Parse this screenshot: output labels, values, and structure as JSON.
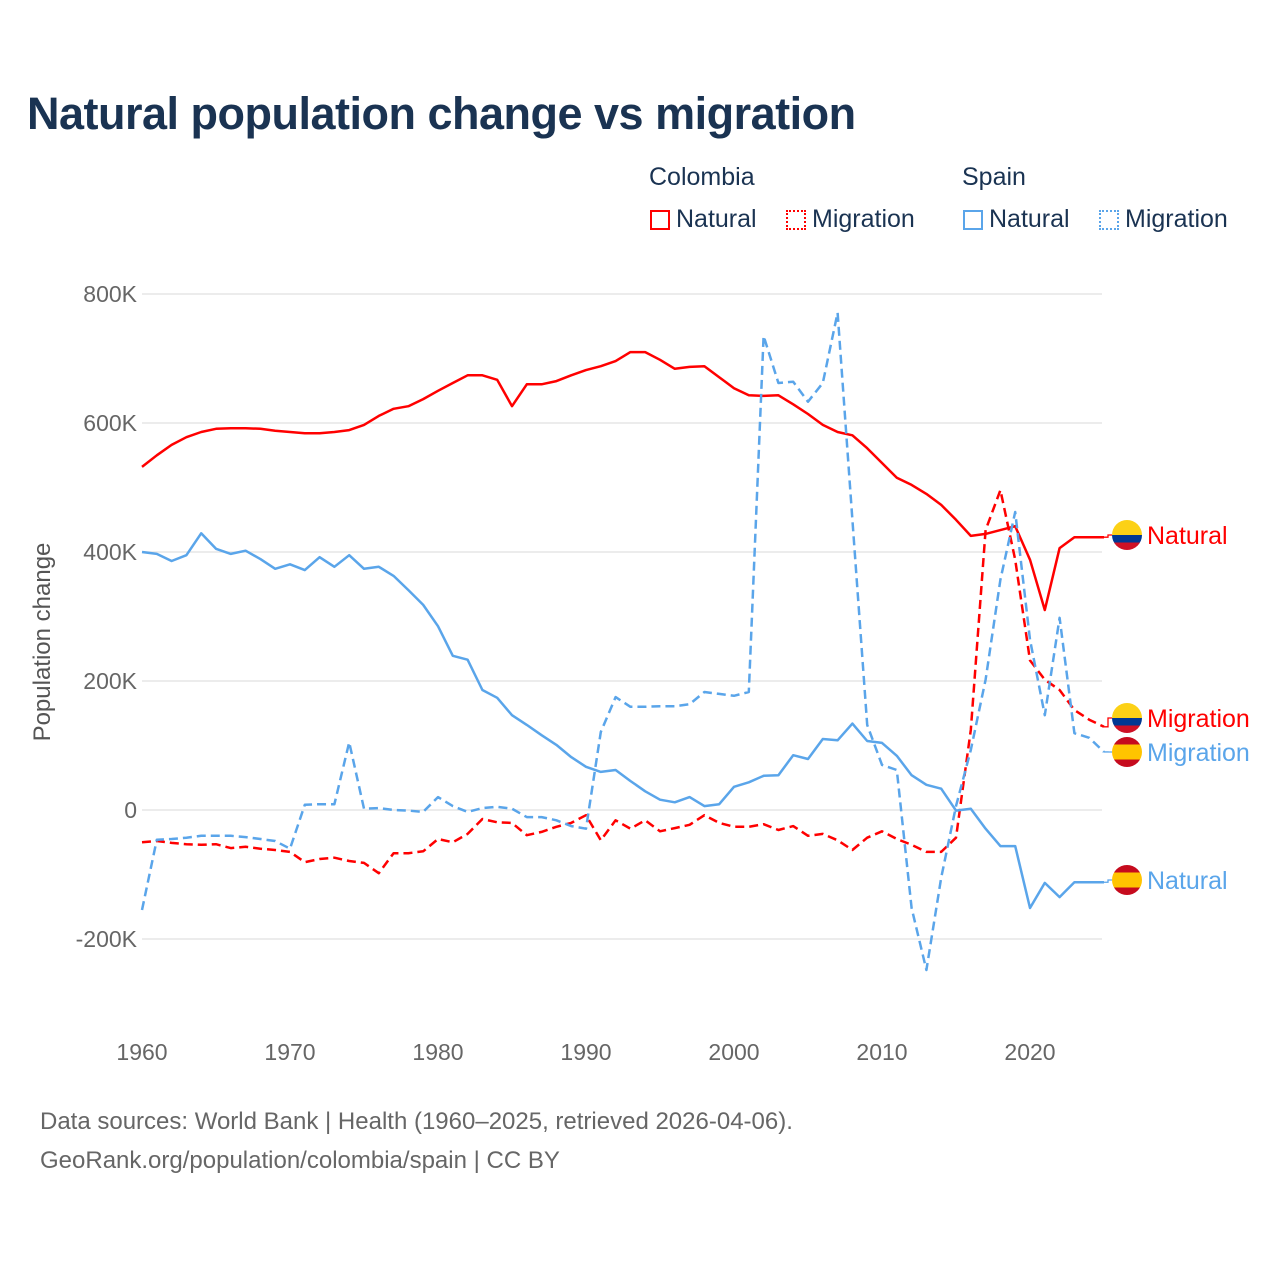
{
  "title": "Natural population change vs migration",
  "legend": {
    "groups": [
      {
        "name": "Colombia",
        "items": [
          {
            "label": "Natural",
            "style": "solid"
          },
          {
            "label": "Migration",
            "style": "dotted"
          }
        ],
        "color": "#ff0000"
      },
      {
        "name": "Spain",
        "items": [
          {
            "label": "Natural",
            "style": "solid"
          },
          {
            "label": "Migration",
            "style": "dotted"
          }
        ],
        "color": "#5aa5ea"
      }
    ]
  },
  "footer": {
    "line1": "Data sources: World Bank | Health (1960–2025, retrieved 2026-04-06).",
    "line2": "GeoRank.org/population/colombia/spain | CC BY"
  },
  "chart_data": {
    "type": "line",
    "title": "Natural population change vs migration",
    "xlabel": "",
    "ylabel": "Population change",
    "xlim": [
      1960,
      2025
    ],
    "ylim": [
      -260000,
      800000
    ],
    "xticks": [
      1960,
      1970,
      1980,
      1990,
      2000,
      2010,
      2020
    ],
    "xtick_labels": [
      "1960",
      "1970",
      "1980",
      "1990",
      "2000",
      "2010",
      "2020"
    ],
    "yticks": [
      -200000,
      0,
      200000,
      400000,
      600000,
      800000
    ],
    "ytick_labels": [
      "-200K",
      "0",
      "200K",
      "400K",
      "600K",
      "800K"
    ],
    "grid": true,
    "legend_position": "top-right",
    "x_start": 1960,
    "series": [
      {
        "name": "Colombia Natural",
        "end_label": "Natural",
        "country": "Colombia",
        "color": "#ff0000",
        "dashed": false,
        "values": [
          532,
          550,
          566,
          578,
          586,
          591,
          592,
          592,
          591,
          588,
          586,
          584,
          584,
          586,
          589,
          597,
          611,
          622,
          626,
          637,
          650,
          662,
          674,
          674,
          667,
          626,
          660,
          660,
          665,
          674,
          682,
          688,
          696,
          710,
          710,
          698,
          684,
          687,
          688,
          671,
          654,
          643,
          642,
          643,
          629,
          614,
          597,
          586,
          581,
          561,
          538,
          515,
          504,
          490,
          473,
          450,
          425,
          428,
          434,
          440,
          388,
          310,
          406,
          423,
          423,
          423
        ]
      },
      {
        "name": "Colombia Migration",
        "end_label": "Migration",
        "country": "Colombia",
        "color": "#ff0000",
        "dashed": true,
        "values": [
          -50,
          -48,
          -51,
          -53,
          -54,
          -53,
          -59,
          -57,
          -60,
          -62,
          -65,
          -81,
          -76,
          -74,
          -79,
          -82,
          -98,
          -67,
          -67,
          -64,
          -45,
          -50,
          -37,
          -14,
          -19,
          -20,
          -39,
          -34,
          -26,
          -20,
          -8,
          -47,
          -16,
          -29,
          -16,
          -33,
          -28,
          -23,
          -8,
          -20,
          -26,
          -26,
          -22,
          -31,
          -25,
          -40,
          -37,
          -47,
          -62,
          -43,
          -33,
          -45,
          -54,
          -65,
          -65,
          -43,
          124,
          434,
          496,
          388,
          232,
          202,
          186,
          155,
          140,
          129
        ]
      },
      {
        "name": "Spain Migration",
        "end_label": "Migration",
        "country": "Spain",
        "color": "#5aa5ea",
        "dashed": true,
        "values": [
          -155,
          -46,
          -45,
          -43,
          -40,
          -40,
          -40,
          -42,
          -45,
          -48,
          -60,
          8,
          9,
          9,
          105,
          2,
          3,
          0,
          -1,
          -3,
          20,
          6,
          -3,
          3,
          5,
          2,
          -11,
          -11,
          -16,
          -25,
          -29,
          121,
          175,
          160,
          160,
          161,
          161,
          164,
          183,
          180,
          177,
          183,
          735,
          662,
          664,
          633,
          662,
          771,
          450,
          132,
          70,
          62,
          -152,
          -248,
          -105,
          6,
          93,
          202,
          357,
          462,
          264,
          147,
          298,
          119,
          112,
          90
        ]
      },
      {
        "name": "Spain Natural",
        "end_label": "Natural",
        "country": "Spain",
        "color": "#5aa5ea",
        "dashed": false,
        "values": [
          400,
          397,
          386,
          395,
          429,
          405,
          397,
          402,
          389,
          374,
          381,
          372,
          392,
          377,
          395,
          374,
          377,
          363,
          341,
          318,
          285,
          239,
          233,
          186,
          174,
          147,
          132,
          116,
          101,
          82,
          67,
          59,
          62,
          45,
          29,
          16,
          12,
          20,
          6,
          9,
          36,
          43,
          53,
          54,
          85,
          79,
          110,
          108,
          134,
          107,
          104,
          84,
          54,
          39,
          33,
          -1,
          2,
          -29,
          -56,
          -56,
          -152,
          -113,
          -135,
          -112,
          -112,
          -112
        ]
      }
    ],
    "value_unit": "thousands"
  }
}
